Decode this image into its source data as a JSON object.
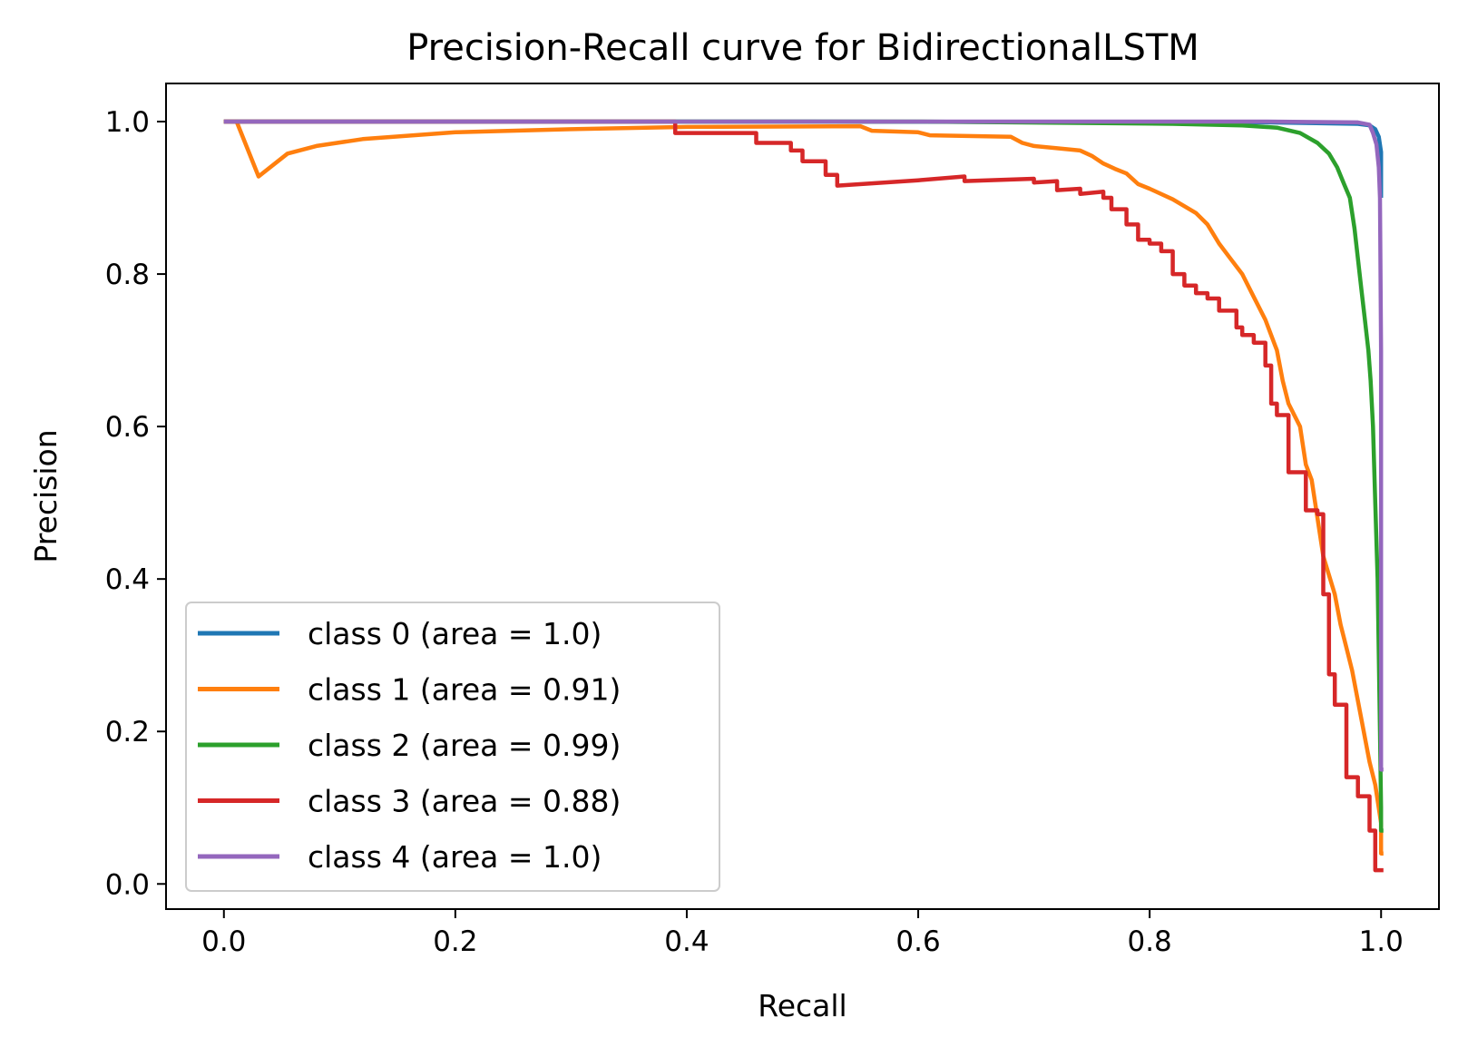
{
  "chart_data": {
    "type": "line",
    "title": "Precision-Recall curve for BidirectionalLSTM",
    "xlabel": "Recall",
    "ylabel": "Precision",
    "xlim": [
      -0.05,
      1.05
    ],
    "ylim": [
      -0.033,
      1.05
    ],
    "xticks": [
      "0.0",
      "0.2",
      "0.4",
      "0.6",
      "0.8",
      "1.0"
    ],
    "yticks": [
      "0.0",
      "0.2",
      "0.4",
      "0.6",
      "0.8",
      "1.0"
    ],
    "grid": false,
    "legend": "lower-left",
    "series": [
      {
        "name": "class 0 (area = 1.0)",
        "color": "#1f77b4",
        "points": [
          [
            0,
            1.0
          ],
          [
            0.5,
            1.0
          ],
          [
            0.9,
            0.999
          ],
          [
            0.98,
            0.997
          ],
          [
            0.99,
            0.995
          ],
          [
            0.995,
            0.99
          ],
          [
            0.998,
            0.98
          ],
          [
            1.0,
            0.96
          ],
          [
            1.0,
            0.9
          ]
        ]
      },
      {
        "name": "class 1 (area = 0.91)",
        "color": "#ff7f0e",
        "points": [
          [
            0,
            1.0
          ],
          [
            0.011,
            1.0
          ],
          [
            0.03,
            0.928
          ],
          [
            0.055,
            0.958
          ],
          [
            0.08,
            0.968
          ],
          [
            0.12,
            0.977
          ],
          [
            0.2,
            0.986
          ],
          [
            0.3,
            0.99
          ],
          [
            0.4,
            0.993
          ],
          [
            0.55,
            0.994
          ],
          [
            0.56,
            0.988
          ],
          [
            0.6,
            0.986
          ],
          [
            0.61,
            0.982
          ],
          [
            0.68,
            0.98
          ],
          [
            0.69,
            0.972
          ],
          [
            0.7,
            0.968
          ],
          [
            0.72,
            0.965
          ],
          [
            0.74,
            0.962
          ],
          [
            0.75,
            0.955
          ],
          [
            0.76,
            0.945
          ],
          [
            0.77,
            0.938
          ],
          [
            0.78,
            0.932
          ],
          [
            0.79,
            0.918
          ],
          [
            0.8,
            0.912
          ],
          [
            0.82,
            0.898
          ],
          [
            0.84,
            0.88
          ],
          [
            0.85,
            0.865
          ],
          [
            0.86,
            0.84
          ],
          [
            0.87,
            0.82
          ],
          [
            0.88,
            0.8
          ],
          [
            0.89,
            0.77
          ],
          [
            0.9,
            0.74
          ],
          [
            0.91,
            0.7
          ],
          [
            0.915,
            0.66
          ],
          [
            0.92,
            0.63
          ],
          [
            0.93,
            0.6
          ],
          [
            0.935,
            0.55
          ],
          [
            0.94,
            0.53
          ],
          [
            0.945,
            0.48
          ],
          [
            0.95,
            0.43
          ],
          [
            0.96,
            0.38
          ],
          [
            0.965,
            0.34
          ],
          [
            0.97,
            0.31
          ],
          [
            0.975,
            0.28
          ],
          [
            0.98,
            0.24
          ],
          [
            0.99,
            0.16
          ],
          [
            0.995,
            0.13
          ],
          [
            1.0,
            0.08
          ],
          [
            1.0,
            0.04
          ],
          [
            1.002,
            0.04
          ]
        ]
      },
      {
        "name": "class 2 (area = 0.99)",
        "color": "#2ca02c",
        "points": [
          [
            0,
            1.0
          ],
          [
            0.6,
            1.0
          ],
          [
            0.76,
            0.998
          ],
          [
            0.82,
            0.997
          ],
          [
            0.88,
            0.995
          ],
          [
            0.91,
            0.992
          ],
          [
            0.93,
            0.985
          ],
          [
            0.945,
            0.972
          ],
          [
            0.955,
            0.958
          ],
          [
            0.962,
            0.94
          ],
          [
            0.968,
            0.918
          ],
          [
            0.973,
            0.9
          ],
          [
            0.977,
            0.86
          ],
          [
            0.98,
            0.82
          ],
          [
            0.983,
            0.78
          ],
          [
            0.986,
            0.74
          ],
          [
            0.989,
            0.7
          ],
          [
            0.991,
            0.66
          ],
          [
            0.993,
            0.6
          ],
          [
            0.995,
            0.5
          ],
          [
            0.997,
            0.4
          ],
          [
            0.998,
            0.3
          ],
          [
            0.999,
            0.2
          ],
          [
            1.0,
            0.1
          ],
          [
            1.0,
            0.07
          ],
          [
            1.002,
            0.07
          ]
        ]
      },
      {
        "name": "class 3 (area = 0.88)",
        "color": "#d62728",
        "points": [
          [
            0,
            1.0
          ],
          [
            0.39,
            1.0
          ],
          [
            0.39,
            0.985
          ],
          [
            0.46,
            0.985
          ],
          [
            0.46,
            0.972
          ],
          [
            0.49,
            0.972
          ],
          [
            0.49,
            0.962
          ],
          [
            0.5,
            0.962
          ],
          [
            0.5,
            0.948
          ],
          [
            0.52,
            0.948
          ],
          [
            0.52,
            0.93
          ],
          [
            0.53,
            0.93
          ],
          [
            0.53,
            0.916
          ],
          [
            0.6,
            0.923
          ],
          [
            0.64,
            0.928
          ],
          [
            0.64,
            0.922
          ],
          [
            0.7,
            0.925
          ],
          [
            0.7,
            0.92
          ],
          [
            0.72,
            0.922
          ],
          [
            0.72,
            0.91
          ],
          [
            0.74,
            0.912
          ],
          [
            0.74,
            0.905
          ],
          [
            0.76,
            0.908
          ],
          [
            0.76,
            0.9
          ],
          [
            0.767,
            0.9
          ],
          [
            0.767,
            0.885
          ],
          [
            0.78,
            0.885
          ],
          [
            0.78,
            0.865
          ],
          [
            0.79,
            0.865
          ],
          [
            0.79,
            0.845
          ],
          [
            0.8,
            0.845
          ],
          [
            0.8,
            0.84
          ],
          [
            0.81,
            0.84
          ],
          [
            0.81,
            0.83
          ],
          [
            0.82,
            0.83
          ],
          [
            0.82,
            0.8
          ],
          [
            0.83,
            0.8
          ],
          [
            0.83,
            0.785
          ],
          [
            0.84,
            0.785
          ],
          [
            0.84,
            0.775
          ],
          [
            0.85,
            0.775
          ],
          [
            0.85,
            0.768
          ],
          [
            0.86,
            0.768
          ],
          [
            0.86,
            0.752
          ],
          [
            0.875,
            0.752
          ],
          [
            0.875,
            0.73
          ],
          [
            0.88,
            0.73
          ],
          [
            0.88,
            0.72
          ],
          [
            0.89,
            0.72
          ],
          [
            0.89,
            0.71
          ],
          [
            0.9,
            0.71
          ],
          [
            0.9,
            0.68
          ],
          [
            0.905,
            0.68
          ],
          [
            0.905,
            0.63
          ],
          [
            0.91,
            0.63
          ],
          [
            0.91,
            0.615
          ],
          [
            0.92,
            0.615
          ],
          [
            0.92,
            0.54
          ],
          [
            0.935,
            0.54
          ],
          [
            0.935,
            0.49
          ],
          [
            0.945,
            0.49
          ],
          [
            0.945,
            0.485
          ],
          [
            0.95,
            0.485
          ],
          [
            0.95,
            0.38
          ],
          [
            0.955,
            0.38
          ],
          [
            0.955,
            0.275
          ],
          [
            0.96,
            0.275
          ],
          [
            0.96,
            0.235
          ],
          [
            0.97,
            0.235
          ],
          [
            0.97,
            0.14
          ],
          [
            0.98,
            0.14
          ],
          [
            0.98,
            0.115
          ],
          [
            0.99,
            0.115
          ],
          [
            0.99,
            0.07
          ],
          [
            0.995,
            0.07
          ],
          [
            0.995,
            0.018
          ],
          [
            1.002,
            0.018
          ]
        ]
      },
      {
        "name": "class 4 (area = 1.0)",
        "color": "#9467bd",
        "points": [
          [
            0,
            1.0
          ],
          [
            0.9,
            1.0
          ],
          [
            0.98,
            0.999
          ],
          [
            0.99,
            0.996
          ],
          [
            0.993,
            0.985
          ],
          [
            0.996,
            0.97
          ],
          [
            0.998,
            0.94
          ],
          [
            0.999,
            0.9
          ],
          [
            1.0,
            0.7
          ],
          [
            1.0,
            0.4
          ],
          [
            1.0,
            0.15
          ],
          [
            1.002,
            0.15
          ]
        ]
      }
    ]
  }
}
